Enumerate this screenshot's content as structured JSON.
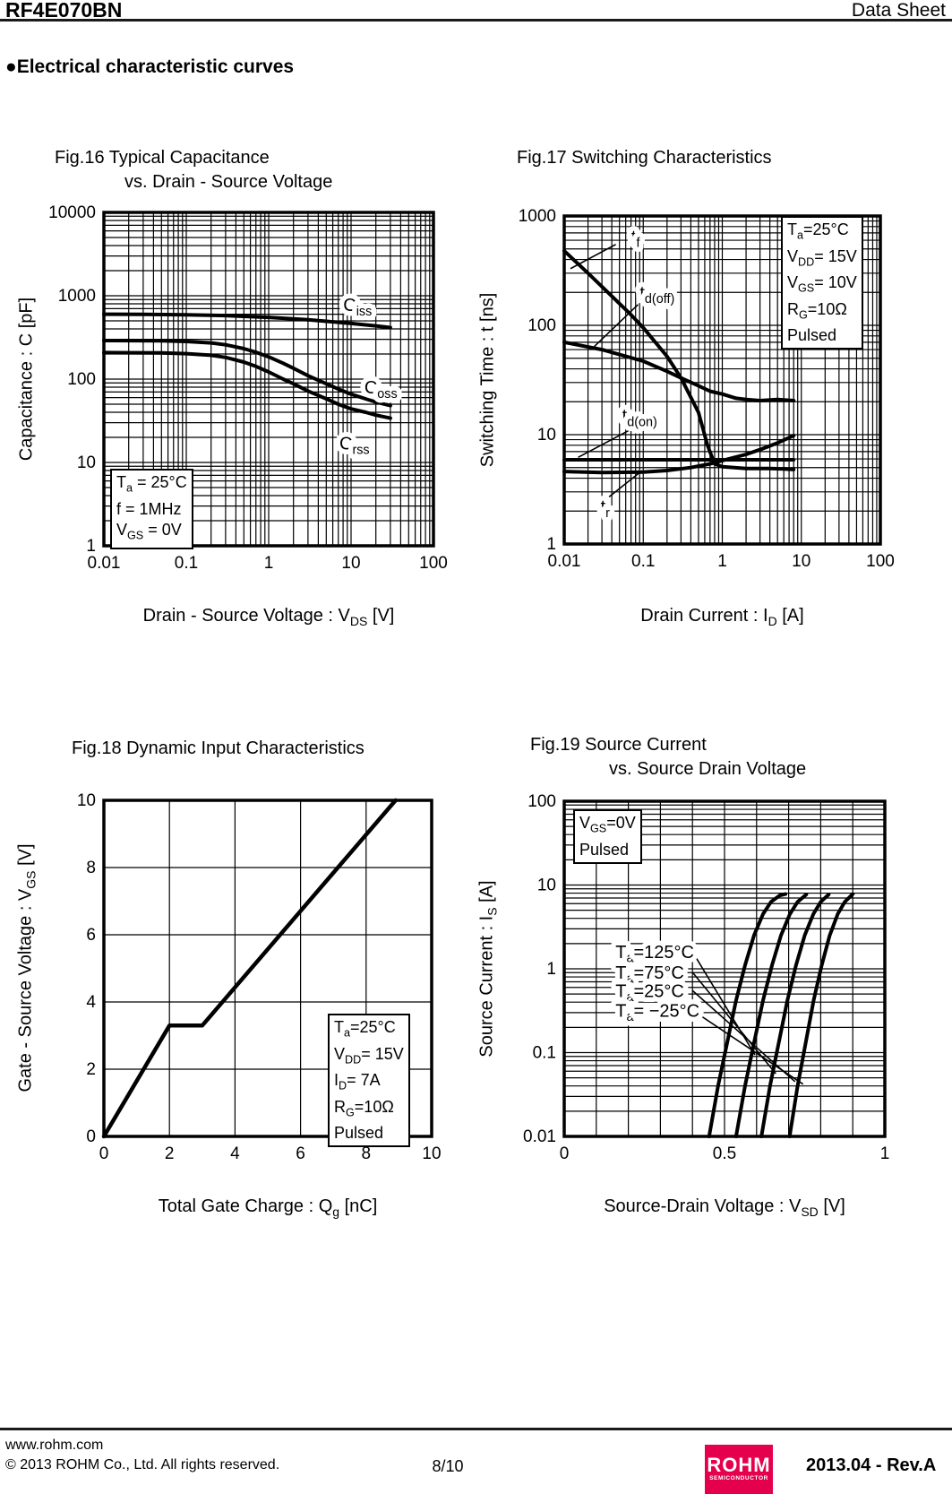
{
  "header": {
    "part_number": "RF4E070BN",
    "doc_type": "Data Sheet"
  },
  "section": {
    "bullet": "●",
    "title": "Electrical characteristic curves"
  },
  "footer": {
    "website": "www.rohm.com",
    "copyright": "© 2013  ROHM Co., Ltd. All rights reserved.",
    "page_number": "8/10",
    "logo_text": "ROHM",
    "logo_subtext": "SEMICONDUCTOR",
    "logo_color": "#e5004e",
    "revision": "2013.04 -  Rev.A"
  },
  "chart_data": [
    {
      "id": "fig16",
      "type": "line",
      "title_lines": [
        "Fig.16 Typical Capacitance",
        "vs. Drain - Source Voltage"
      ],
      "xlabel": "Drain - Source Voltage : V_{DS} [V]",
      "ylabel": "Capacitance : C [pF]",
      "x_axis": {
        "scale": "log",
        "min": 0.01,
        "max": 100,
        "ticks": [
          "0.01",
          "0.1",
          "1",
          "10",
          "100"
        ]
      },
      "y_axis": {
        "scale": "log",
        "min": 1,
        "max": 10000,
        "ticks": [
          "1",
          "10",
          "100",
          "1000",
          "10000"
        ]
      },
      "grid": true,
      "note_lines": [
        "T_{a} = 25°C",
        "f = 1MHz",
        "V_{GS} = 0V"
      ],
      "series": [
        {
          "name": "C_{iss}",
          "points": [
            [
              0.01,
              600
            ],
            [
              0.03,
              598
            ],
            [
              0.1,
              590
            ],
            [
              0.3,
              578
            ],
            [
              1,
              550
            ],
            [
              3,
              515
            ],
            [
              10,
              465
            ],
            [
              20,
              435
            ],
            [
              30,
              415
            ]
          ]
        },
        {
          "name": "C_{oss}",
          "points": [
            [
              0.01,
              290
            ],
            [
              0.05,
              288
            ],
            [
              0.1,
              283
            ],
            [
              0.2,
              272
            ],
            [
              0.3,
              258
            ],
            [
              0.5,
              232
            ],
            [
              0.7,
              210
            ],
            [
              1,
              185
            ],
            [
              1.5,
              155
            ],
            [
              2,
              135
            ],
            [
              3,
              110
            ],
            [
              5,
              88
            ],
            [
              7,
              76
            ],
            [
              10,
              66
            ],
            [
              15,
              58
            ],
            [
              20,
              53
            ],
            [
              30,
              48
            ]
          ]
        },
        {
          "name": "C_{rss}",
          "points": [
            [
              0.01,
              208
            ],
            [
              0.05,
              206
            ],
            [
              0.1,
              202
            ],
            [
              0.2,
              193
            ],
            [
              0.3,
              182
            ],
            [
              0.5,
              160
            ],
            [
              0.7,
              142
            ],
            [
              1,
              122
            ],
            [
              1.5,
              100
            ],
            [
              2,
              88
            ],
            [
              3,
              72
            ],
            [
              5,
              58
            ],
            [
              7,
              50
            ],
            [
              10,
              44
            ],
            [
              15,
              40
            ],
            [
              20,
              37
            ],
            [
              30,
              34
            ]
          ]
        }
      ],
      "curve_labels": [
        {
          "text": "C_{iss}",
          "x": 12,
          "y": 780,
          "anchor": "middle"
        },
        {
          "text": "C_{oss}",
          "x": 23,
          "y": 80,
          "anchor": "middle"
        },
        {
          "text": "C_{rss}",
          "x": 11,
          "y": 17,
          "anchor": "middle"
        }
      ],
      "leaders": []
    },
    {
      "id": "fig17",
      "type": "line",
      "title_lines": [
        "Fig.17 Switching Characteristics"
      ],
      "xlabel": "Drain Current : I_{D} [A]",
      "ylabel": "Switching Time : t [ns]",
      "x_axis": {
        "scale": "log",
        "min": 0.01,
        "max": 100,
        "ticks": [
          "0.01",
          "0.1",
          "1",
          "10",
          "100"
        ]
      },
      "y_axis": {
        "scale": "log",
        "min": 1,
        "max": 1000,
        "ticks": [
          "1",
          "10",
          "100",
          "1000"
        ]
      },
      "grid": true,
      "note_lines": [
        "T_{a}=25°C",
        "V_{DD}= 15V",
        "V_{GS}= 10V",
        "R_{G}=10Ω",
        "Pulsed"
      ],
      "series": [
        {
          "name": "t_{f}",
          "points": [
            [
              0.01,
              480
            ],
            [
              0.02,
              300
            ],
            [
              0.04,
              185
            ],
            [
              0.07,
              125
            ],
            [
              0.1,
              95
            ],
            [
              0.2,
              52
            ],
            [
              0.3,
              33
            ],
            [
              0.5,
              16
            ],
            [
              0.65,
              8
            ],
            [
              0.8,
              5.4
            ],
            [
              1,
              5.1
            ],
            [
              2,
              4.9
            ],
            [
              4,
              4.9
            ],
            [
              6,
              4.85
            ],
            [
              8,
              4.8
            ]
          ]
        },
        {
          "name": "t_{d(off)}",
          "points": [
            [
              0.01,
              70
            ],
            [
              0.03,
              60
            ],
            [
              0.1,
              47
            ],
            [
              0.2,
              38
            ],
            [
              0.3,
              33
            ],
            [
              0.5,
              28
            ],
            [
              0.7,
              25
            ],
            [
              1,
              23.5
            ],
            [
              1.5,
              21.5
            ],
            [
              2,
              21
            ],
            [
              3,
              20.5
            ],
            [
              5,
              21
            ],
            [
              8,
              20.5
            ]
          ]
        },
        {
          "name": "t_{d(on)}",
          "points": [
            [
              0.01,
              5.9
            ],
            [
              8,
              5.9
            ]
          ]
        },
        {
          "name": "t_{r}",
          "points": [
            [
              0.01,
              4.6
            ],
            [
              0.03,
              4.5
            ],
            [
              0.1,
              4.55
            ],
            [
              0.2,
              4.7
            ],
            [
              0.4,
              5.0
            ],
            [
              0.7,
              5.4
            ],
            [
              1,
              5.8
            ],
            [
              2,
              6.6
            ],
            [
              3,
              7.3
            ],
            [
              5,
              8.4
            ],
            [
              8,
              9.8
            ]
          ]
        }
      ],
      "curve_labels": [
        {
          "text": "t_{f}",
          "x": 0.08,
          "y": 650,
          "anchor": "middle"
        },
        {
          "text": "t_{d(off)}",
          "x": 0.15,
          "y": 200,
          "anchor": "middle"
        },
        {
          "text": "t_{d(on)}",
          "x": 0.09,
          "y": 15,
          "anchor": "middle"
        },
        {
          "text": "t_{r}",
          "x": 0.033,
          "y": 2.2,
          "anchor": "middle"
        }
      ],
      "leaders": [
        [
          0.045,
          550,
          0.012,
          330
        ],
        [
          0.086,
          155,
          0.024,
          64
        ],
        [
          0.067,
          11,
          0.015,
          6.2
        ],
        [
          0.037,
          2.7,
          0.097,
          4.7
        ]
      ]
    },
    {
      "id": "fig18",
      "type": "line",
      "title_lines": [
        "Fig.18 Dynamic Input Characteristics"
      ],
      "xlabel": "Total Gate Charge : Q_{g} [nC]",
      "ylabel": "Gate - Source Voltage : V_{GS} [V]",
      "x_axis": {
        "scale": "linear",
        "min": 0,
        "max": 10,
        "grid_step": 2,
        "ticks": [
          "0",
          "2",
          "4",
          "6",
          "8",
          "10"
        ]
      },
      "y_axis": {
        "scale": "linear",
        "min": 0,
        "max": 10,
        "grid_step": 2,
        "ticks": [
          "0",
          "2",
          "4",
          "6",
          "8",
          "10"
        ]
      },
      "grid": true,
      "note_lines": [
        "T_{a}=25°C",
        "V_{DD}= 15V",
        "I_{D}= 7A",
        "R_{G}=10Ω",
        "Pulsed"
      ],
      "series": [
        {
          "name": "V_{GS}",
          "points": [
            [
              0,
              0
            ],
            [
              2,
              3.3
            ],
            [
              3,
              3.3
            ],
            [
              8.9,
              10
            ]
          ]
        }
      ],
      "curve_labels": [],
      "leaders": []
    },
    {
      "id": "fig19",
      "type": "line",
      "title_lines": [
        "Fig.19 Source Current",
        "vs. Source Drain Voltage"
      ],
      "xlabel": "Source-Drain Voltage : V_{SD} [V]",
      "ylabel": "Source Current : I_{S} [A]",
      "x_axis": {
        "scale": "linear",
        "min": 0,
        "max": 1,
        "grid_step": 0.1,
        "ticks": [
          "0",
          "0.5",
          "1"
        ]
      },
      "y_axis": {
        "scale": "log",
        "min": 0.01,
        "max": 100,
        "ticks": [
          "0.01",
          "0.1",
          "1",
          "10",
          "100"
        ]
      },
      "grid": true,
      "note_lines": [
        "V_{GS}=0V",
        "Pulsed"
      ],
      "series": [
        {
          "name": "T_{a}=125°C",
          "points": [
            [
              0.452,
              0.01
            ],
            [
              0.48,
              0.04
            ],
            [
              0.508,
              0.13
            ],
            [
              0.536,
              0.42
            ],
            [
              0.564,
              1.1
            ],
            [
              0.592,
              2.5
            ],
            [
              0.62,
              4.5
            ],
            [
              0.645,
              6.3
            ],
            [
              0.672,
              7.5
            ],
            [
              0.69,
              7.8
            ]
          ]
        },
        {
          "name": "T_{a}=75°C",
          "points": [
            [
              0.536,
              0.01
            ],
            [
              0.564,
              0.04
            ],
            [
              0.592,
              0.13
            ],
            [
              0.62,
              0.42
            ],
            [
              0.648,
              1.1
            ],
            [
              0.676,
              2.5
            ],
            [
              0.704,
              4.5
            ],
            [
              0.728,
              6.3
            ],
            [
              0.755,
              7.7
            ]
          ]
        },
        {
          "name": "T_{a}=25°C",
          "points": [
            [
              0.615,
              0.01
            ],
            [
              0.642,
              0.04
            ],
            [
              0.669,
              0.13
            ],
            [
              0.696,
              0.42
            ],
            [
              0.723,
              1.1
            ],
            [
              0.75,
              2.5
            ],
            [
              0.777,
              4.5
            ],
            [
              0.8,
              6.3
            ],
            [
              0.825,
              7.7
            ]
          ]
        },
        {
          "name": "T_{a}= −25°C",
          "points": [
            [
              0.703,
              0.01
            ],
            [
              0.728,
              0.04
            ],
            [
              0.753,
              0.13
            ],
            [
              0.778,
              0.42
            ],
            [
              0.803,
              1.1
            ],
            [
              0.828,
              2.5
            ],
            [
              0.853,
              4.5
            ],
            [
              0.875,
              6.3
            ],
            [
              0.9,
              7.8
            ]
          ]
        }
      ],
      "curve_labels": [
        {
          "text": "T_{a}=125°C",
          "x": 0.16,
          "y": 1.6,
          "anchor": "start"
        },
        {
          "text": "T_{a}=75°C",
          "x": 0.16,
          "y": 0.91,
          "anchor": "start"
        },
        {
          "text": "T_{a}=25°C",
          "x": 0.16,
          "y": 0.55,
          "anchor": "start"
        },
        {
          "text": "T_{a}= −25°C",
          "x": 0.16,
          "y": 0.32,
          "anchor": "start"
        }
      ],
      "leaders": [
        [
          0.4,
          1.6,
          0.595,
          0.094
        ],
        [
          0.4,
          0.91,
          0.66,
          0.056
        ],
        [
          0.4,
          0.55,
          0.72,
          0.045
        ],
        [
          0.4,
          0.32,
          0.745,
          0.042
        ]
      ]
    }
  ]
}
